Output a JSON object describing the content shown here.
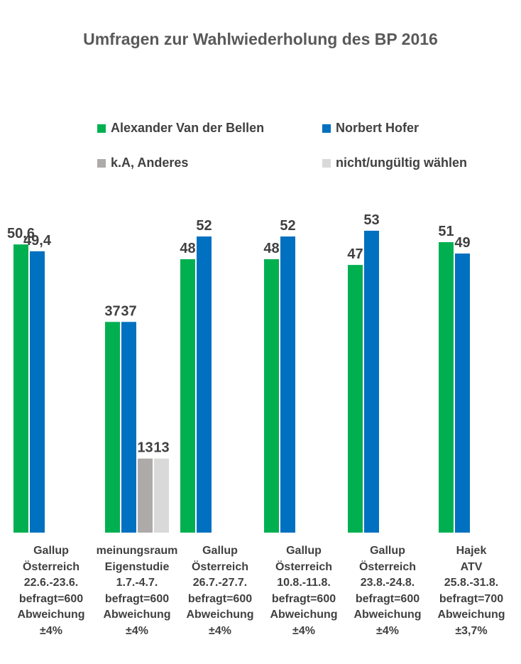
{
  "chart_data": {
    "type": "bar",
    "title": "Umfragen zur Wahlwiederholung des BP 2016",
    "ylim": [
      0,
      60
    ],
    "legend_position": "top",
    "categories": [
      [
        "Gallup",
        "Österreich",
        "22.6.-23.6.",
        "befragt=600",
        "Abweichung",
        "±4%"
      ],
      [
        "meinungsraum",
        "Eigenstudie",
        "1.7.-4.7.",
        "befragt=600",
        "Abweichung",
        "±4%"
      ],
      [
        "Gallup",
        "Österreich",
        "26.7.-27.7.",
        "befragt=600",
        "Abweichung",
        "±4%"
      ],
      [
        "Gallup",
        "Österreich",
        "10.8.-11.8.",
        "befragt=600",
        "Abweichung",
        "±4%"
      ],
      [
        "Gallup",
        "Österreich",
        "23.8.-24.8.",
        "befragt=600",
        "Abweichung",
        "±4%"
      ],
      [
        "Hajek",
        "ATV",
        "25.8.-31.8.",
        "befragt=700",
        "Abweichung",
        "±3,7%"
      ]
    ],
    "series": [
      {
        "name": "Alexander Van der Bellen",
        "color": "#00b050",
        "values": [
          50.6,
          37,
          48,
          48,
          47,
          51
        ],
        "labels": [
          "50,6",
          "37",
          "48",
          "48",
          "47",
          "51"
        ]
      },
      {
        "name": "Norbert Hofer",
        "color": "#0070c0",
        "values": [
          49.4,
          37,
          52,
          52,
          53,
          49
        ],
        "labels": [
          "49,4",
          "37",
          "52",
          "52",
          "53",
          "49"
        ]
      },
      {
        "name": "k.A, Anderes",
        "color": "#aeaaaa",
        "values": [
          null,
          13,
          null,
          null,
          null,
          null
        ],
        "labels": [
          "",
          "13",
          "",
          "",
          "",
          ""
        ]
      },
      {
        "name": "nicht/ungültig wählen",
        "color": "#d9d9d9",
        "values": [
          null,
          13,
          null,
          null,
          null,
          null
        ],
        "labels": [
          "",
          "13",
          "",
          "",
          "",
          ""
        ]
      }
    ]
  }
}
